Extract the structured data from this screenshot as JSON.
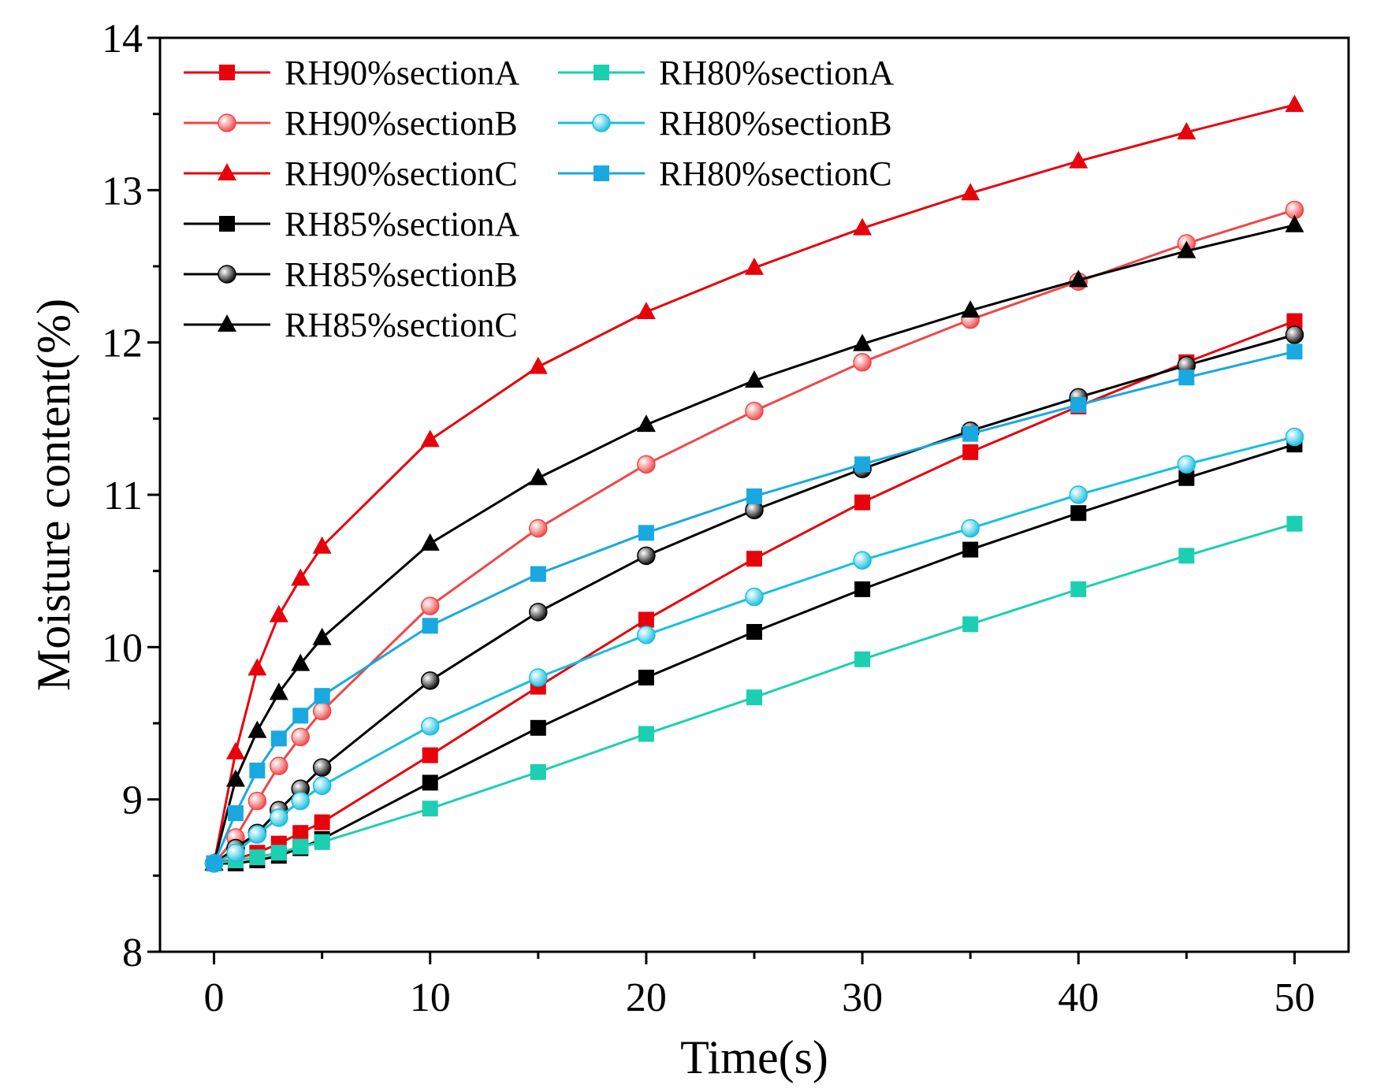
{
  "chart_data": {
    "type": "line",
    "title": "",
    "xlabel": "Time(s)",
    "ylabel": "Moisture content(%)",
    "xlim": [
      -2.5,
      52.5
    ],
    "ylim": [
      8,
      14
    ],
    "x_ticks": [
      0,
      10,
      20,
      30,
      40,
      50
    ],
    "y_ticks": [
      8,
      9,
      10,
      11,
      12,
      13,
      14
    ],
    "grid": false,
    "legend_position": "top-left",
    "x": [
      0,
      1,
      2,
      3,
      4,
      5,
      10,
      15,
      20,
      25,
      30,
      35,
      40,
      45,
      50
    ],
    "series": [
      {
        "name": "RH90%sectionA",
        "color": "#e8000b",
        "marker": "square",
        "values": [
          8.58,
          8.61,
          8.65,
          8.71,
          8.78,
          8.85,
          9.29,
          9.74,
          10.18,
          10.58,
          10.95,
          11.28,
          11.58,
          11.87,
          12.14
        ]
      },
      {
        "name": "RH90%sectionB",
        "color": "#f04646",
        "marker": "circle",
        "values": [
          8.58,
          8.75,
          8.99,
          9.22,
          9.41,
          9.58,
          10.27,
          10.78,
          11.2,
          11.55,
          11.87,
          12.15,
          12.4,
          12.65,
          12.87
        ]
      },
      {
        "name": "RH90%sectionC",
        "color": "#e8000b",
        "marker": "triangle",
        "values": [
          8.58,
          9.31,
          9.86,
          10.21,
          10.45,
          10.66,
          11.36,
          11.84,
          12.2,
          12.49,
          12.75,
          12.98,
          13.19,
          13.38,
          13.56
        ]
      },
      {
        "name": "RH85%sectionA",
        "color": "#000000",
        "marker": "square",
        "values": [
          8.58,
          8.58,
          8.6,
          8.63,
          8.68,
          8.74,
          9.11,
          9.47,
          9.8,
          10.1,
          10.38,
          10.64,
          10.88,
          11.11,
          11.33
        ]
      },
      {
        "name": "RH85%sectionB",
        "color": "#000000",
        "marker": "circle",
        "values": [
          8.58,
          8.68,
          8.78,
          8.93,
          9.07,
          9.21,
          9.78,
          10.23,
          10.6,
          10.9,
          11.17,
          11.42,
          11.64,
          11.85,
          12.05
        ]
      },
      {
        "name": "RH85%sectionC",
        "color": "#000000",
        "marker": "triangle",
        "values": [
          8.58,
          9.13,
          9.45,
          9.7,
          9.89,
          10.06,
          10.68,
          11.11,
          11.46,
          11.75,
          11.99,
          12.21,
          12.41,
          12.6,
          12.77
        ]
      },
      {
        "name": "RH80%sectionA",
        "color": "#1ccfb0",
        "marker": "square",
        "values": [
          8.58,
          8.6,
          8.62,
          8.65,
          8.69,
          8.72,
          8.94,
          9.18,
          9.43,
          9.67,
          9.92,
          10.15,
          10.38,
          10.6,
          10.81
        ]
      },
      {
        "name": "RH80%sectionB",
        "color": "#15bfe0",
        "marker": "circle",
        "values": [
          8.58,
          8.65,
          8.77,
          8.88,
          8.99,
          9.09,
          9.48,
          9.8,
          10.08,
          10.33,
          10.57,
          10.78,
          11.0,
          11.2,
          11.38
        ]
      },
      {
        "name": "RH80%sectionC",
        "color": "#1aa8e0",
        "marker": "square",
        "values": [
          8.58,
          8.91,
          9.19,
          9.4,
          9.55,
          9.68,
          10.14,
          10.48,
          10.75,
          10.99,
          11.2,
          11.4,
          11.59,
          11.77,
          11.94
        ]
      }
    ]
  }
}
